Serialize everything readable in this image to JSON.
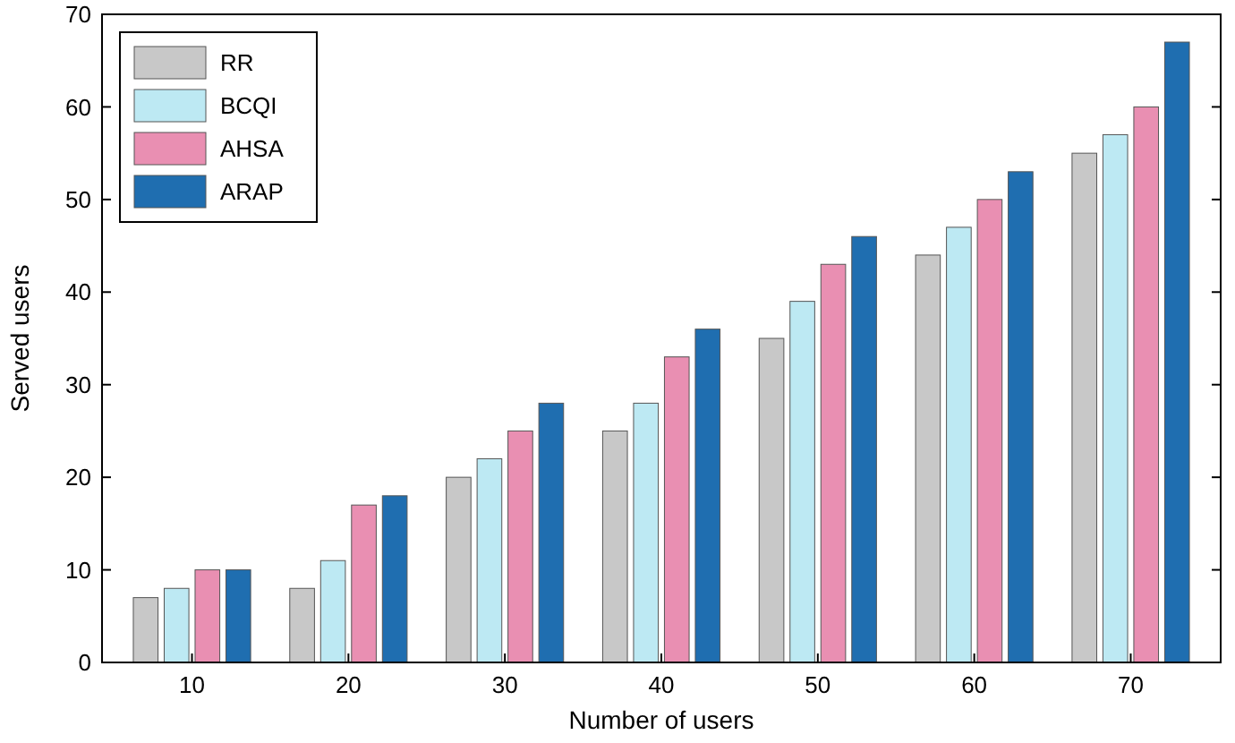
{
  "chart_data": {
    "type": "bar",
    "xlabel": "Number of users",
    "ylabel": "Served users",
    "categories": [
      "10",
      "20",
      "30",
      "40",
      "50",
      "60",
      "70"
    ],
    "series": [
      {
        "name": "RR",
        "color": "#c8c8c8",
        "values": [
          7,
          8,
          20,
          25,
          35,
          44,
          55
        ]
      },
      {
        "name": "BCQI",
        "color": "#bde9f3",
        "values": [
          8,
          11,
          22,
          28,
          39,
          47,
          57
        ]
      },
      {
        "name": "AHSA",
        "color": "#e98fb2",
        "values": [
          10,
          17,
          25,
          33,
          43,
          50,
          60
        ]
      },
      {
        "name": "ARAP",
        "color": "#1f6eb0",
        "values": [
          10,
          18,
          28,
          36,
          46,
          53,
          67
        ]
      }
    ],
    "ylim": [
      0,
      70
    ],
    "yticks": [
      0,
      10,
      20,
      30,
      40,
      50,
      60,
      70
    ],
    "grid": false,
    "legend": "top left"
  }
}
